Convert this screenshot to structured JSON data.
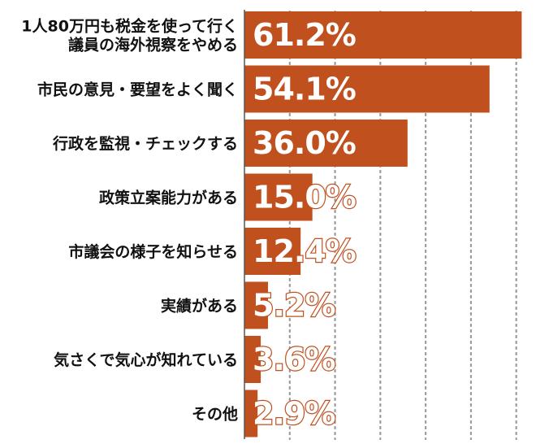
{
  "chart_data": {
    "type": "bar",
    "orientation": "horizontal",
    "categories": [
      "1人80万円も税金を使って行く\n議員の海外視察をやめる",
      "市民の意見・要望をよく聞く",
      "行政を監視・チェックする",
      "政策立案能力がある",
      "市議会の様子を知らせる",
      "実績がある",
      "気さくで気心が知れている",
      "その他"
    ],
    "values": [
      61.2,
      54.1,
      36.0,
      15.0,
      12.4,
      5.2,
      3.6,
      2.9
    ],
    "value_labels": [
      "61.2%",
      "54.1%",
      "36.0%",
      "15.0%",
      "12.4%",
      "5.2%",
      "3.6%",
      "2.9%"
    ],
    "xlim": [
      0,
      64
    ],
    "gridlines": [
      0,
      10,
      20,
      30,
      40,
      50,
      60
    ],
    "grid": "dotted vertical",
    "bar_color": "#c0501e",
    "value_text_color": "#ffffff",
    "value_outline_color": "#c0501e",
    "title": "",
    "xlabel": "",
    "ylabel": ""
  }
}
